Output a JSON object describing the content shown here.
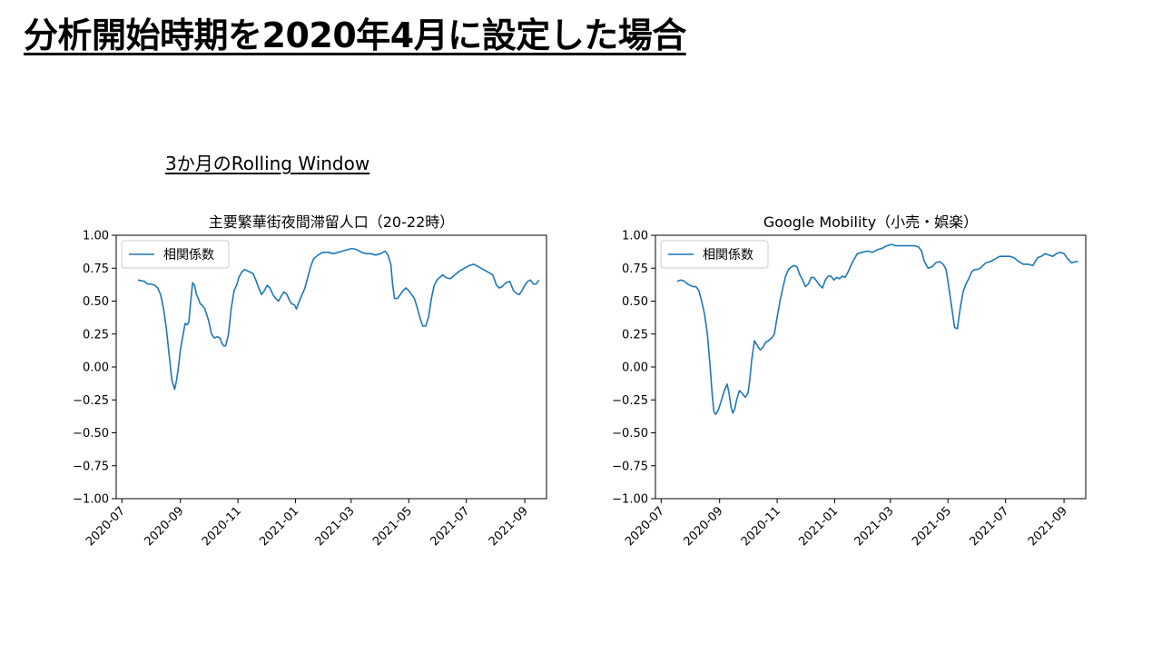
{
  "slide": {
    "title": "分析開始時期を2020年4月に設定した場合",
    "subtitle": "3か月のRolling Window"
  },
  "chart_data": [
    {
      "type": "line",
      "title": "主要繁華街夜間滞留人口（20-22時）",
      "xlabel": "",
      "ylabel": "",
      "ylim": [
        -1.0,
        1.0
      ],
      "yticks": [
        1.0,
        0.75,
        0.5,
        0.25,
        0.0,
        -0.25,
        -0.5,
        -0.75,
        -1.0
      ],
      "ytick_labels": [
        "1.00",
        "0.75",
        "0.50",
        "0.25",
        "0.00",
        "−0.25",
        "−0.50",
        "−0.75",
        "−1.00"
      ],
      "xlim": [
        "2020-06-25",
        "2021-09-24"
      ],
      "xticks": [
        "2020-07-01",
        "2020-09-01",
        "2020-11-01",
        "2021-01-01",
        "2021-03-01",
        "2021-05-01",
        "2021-07-01",
        "2021-09-01"
      ],
      "xtick_labels": [
        "2020-07",
        "2020-09",
        "2020-11",
        "2021-01",
        "2021-03",
        "2021-05",
        "2021-07",
        "2021-09"
      ],
      "legend": {
        "location": "upper left"
      },
      "grid": false,
      "color": "#1f77b4",
      "series": [
        {
          "name": "相関係数",
          "x": [
            "2020-07-18",
            "2020-07-25",
            "2020-07-28",
            "2020-08-01",
            "2020-08-05",
            "2020-08-08",
            "2020-08-11",
            "2020-08-14",
            "2020-08-17",
            "2020-08-20",
            "2020-08-23",
            "2020-08-26",
            "2020-08-28",
            "2020-08-30",
            "2020-09-01",
            "2020-09-04",
            "2020-09-06",
            "2020-09-08",
            "2020-09-10",
            "2020-09-12",
            "2020-09-14",
            "2020-09-16",
            "2020-09-18",
            "2020-09-20",
            "2020-09-22",
            "2020-09-24",
            "2020-09-27",
            "2020-10-01",
            "2020-10-04",
            "2020-10-07",
            "2020-10-10",
            "2020-10-13",
            "2020-10-15",
            "2020-10-17",
            "2020-10-19",
            "2020-10-22",
            "2020-10-25",
            "2020-10-28",
            "2020-10-31",
            "2020-11-02",
            "2020-11-05",
            "2020-11-08",
            "2020-11-11",
            "2020-11-14",
            "2020-11-17",
            "2020-11-20",
            "2020-11-23",
            "2020-11-26",
            "2020-11-29",
            "2020-12-02",
            "2020-12-05",
            "2020-12-08",
            "2020-12-11",
            "2020-12-14",
            "2020-12-17",
            "2020-12-20",
            "2020-12-23",
            "2020-12-26",
            "2020-12-28",
            "2020-12-31",
            "2021-01-02",
            "2021-01-05",
            "2021-01-08",
            "2021-01-11",
            "2021-01-14",
            "2021-01-17",
            "2021-01-20",
            "2021-01-25",
            "2021-01-30",
            "2021-02-05",
            "2021-02-10",
            "2021-02-15",
            "2021-02-20",
            "2021-02-25",
            "2021-03-02",
            "2021-03-07",
            "2021-03-12",
            "2021-03-17",
            "2021-03-22",
            "2021-03-27",
            "2021-04-01",
            "2021-04-06",
            "2021-04-09",
            "2021-04-12",
            "2021-04-14",
            "2021-04-16",
            "2021-04-19",
            "2021-04-22",
            "2021-04-25",
            "2021-04-28",
            "2021-05-01",
            "2021-05-04",
            "2021-05-07",
            "2021-05-10",
            "2021-05-13",
            "2021-05-16",
            "2021-05-19",
            "2021-05-22",
            "2021-05-25",
            "2021-05-28",
            "2021-05-31",
            "2021-06-03",
            "2021-06-06",
            "2021-06-09",
            "2021-06-14",
            "2021-06-19",
            "2021-06-24",
            "2021-06-29",
            "2021-07-04",
            "2021-07-09",
            "2021-07-14",
            "2021-07-19",
            "2021-07-24",
            "2021-07-29",
            "2021-08-02",
            "2021-08-05",
            "2021-08-08",
            "2021-08-12",
            "2021-08-16",
            "2021-08-20",
            "2021-08-23",
            "2021-08-26",
            "2021-08-29",
            "2021-09-01",
            "2021-09-04",
            "2021-09-07",
            "2021-09-10",
            "2021-09-13",
            "2021-09-16"
          ],
          "y": [
            0.66,
            0.65,
            0.63,
            0.63,
            0.62,
            0.6,
            0.55,
            0.45,
            0.3,
            0.1,
            -0.1,
            -0.17,
            -0.1,
            0.0,
            0.13,
            0.25,
            0.33,
            0.32,
            0.34,
            0.5,
            0.64,
            0.62,
            0.55,
            0.52,
            0.48,
            0.47,
            0.44,
            0.35,
            0.25,
            0.22,
            0.23,
            0.22,
            0.18,
            0.16,
            0.16,
            0.25,
            0.45,
            0.58,
            0.63,
            0.68,
            0.72,
            0.74,
            0.73,
            0.72,
            0.71,
            0.66,
            0.6,
            0.55,
            0.58,
            0.62,
            0.6,
            0.55,
            0.52,
            0.5,
            0.54,
            0.57,
            0.55,
            0.5,
            0.48,
            0.47,
            0.44,
            0.5,
            0.55,
            0.6,
            0.68,
            0.76,
            0.82,
            0.85,
            0.87,
            0.87,
            0.86,
            0.87,
            0.88,
            0.89,
            0.9,
            0.89,
            0.87,
            0.86,
            0.86,
            0.85,
            0.86,
            0.88,
            0.85,
            0.78,
            0.62,
            0.52,
            0.52,
            0.55,
            0.58,
            0.6,
            0.58,
            0.55,
            0.52,
            0.45,
            0.37,
            0.31,
            0.31,
            0.38,
            0.52,
            0.62,
            0.66,
            0.68,
            0.7,
            0.68,
            0.67,
            0.7,
            0.73,
            0.75,
            0.77,
            0.78,
            0.76,
            0.74,
            0.72,
            0.7,
            0.62,
            0.6,
            0.61,
            0.64,
            0.65,
            0.58,
            0.56,
            0.55,
            0.58,
            0.62,
            0.65,
            0.66,
            0.63,
            0.63,
            0.66
          ]
        }
      ]
    },
    {
      "type": "line",
      "title": "Google Mobility（小売・娯楽）",
      "xlabel": "",
      "ylabel": "",
      "ylim": [
        -1.0,
        1.0
      ],
      "yticks": [
        1.0,
        0.75,
        0.5,
        0.25,
        0.0,
        -0.25,
        -0.5,
        -0.75,
        -1.0
      ],
      "ytick_labels": [
        "1.00",
        "0.75",
        "0.50",
        "0.25",
        "0.00",
        "−0.25",
        "−0.50",
        "−0.75",
        "−1.00"
      ],
      "xlim": [
        "2020-06-25",
        "2021-09-24"
      ],
      "xticks": [
        "2020-07-01",
        "2020-09-01",
        "2020-11-01",
        "2021-01-01",
        "2021-03-01",
        "2021-05-01",
        "2021-07-01",
        "2021-09-01"
      ],
      "xtick_labels": [
        "2020-07",
        "2020-09",
        "2020-11",
        "2021-01",
        "2021-03",
        "2021-05",
        "2021-07",
        "2021-09"
      ],
      "legend": {
        "location": "upper left"
      },
      "grid": false,
      "color": "#1f77b4",
      "series": [
        {
          "name": "相関係数",
          "x": [
            "2020-07-18",
            "2020-07-22",
            "2020-07-26",
            "2020-07-29",
            "2020-08-01",
            "2020-08-04",
            "2020-08-07",
            "2020-08-10",
            "2020-08-13",
            "2020-08-16",
            "2020-08-19",
            "2020-08-22",
            "2020-08-24",
            "2020-08-26",
            "2020-08-28",
            "2020-08-31",
            "2020-09-03",
            "2020-09-06",
            "2020-09-09",
            "2020-09-11",
            "2020-09-13",
            "2020-09-15",
            "2020-09-17",
            "2020-09-19",
            "2020-09-22",
            "2020-09-25",
            "2020-09-28",
            "2020-10-01",
            "2020-10-03",
            "2020-10-05",
            "2020-10-08",
            "2020-10-11",
            "2020-10-14",
            "2020-10-17",
            "2020-10-20",
            "2020-10-23",
            "2020-10-26",
            "2020-10-29",
            "2020-11-01",
            "2020-11-04",
            "2020-11-07",
            "2020-11-10",
            "2020-11-13",
            "2020-11-16",
            "2020-11-19",
            "2020-11-22",
            "2020-11-25",
            "2020-11-28",
            "2020-12-01",
            "2020-12-04",
            "2020-12-07",
            "2020-12-10",
            "2020-12-13",
            "2020-12-16",
            "2020-12-19",
            "2020-12-22",
            "2020-12-25",
            "2020-12-28",
            "2020-12-31",
            "2021-01-03",
            "2021-01-06",
            "2021-01-09",
            "2021-01-12",
            "2021-01-15",
            "2021-01-20",
            "2021-01-25",
            "2021-01-30",
            "2021-02-05",
            "2021-02-10",
            "2021-02-15",
            "2021-02-20",
            "2021-02-25",
            "2021-03-02",
            "2021-03-07",
            "2021-03-12",
            "2021-03-17",
            "2021-03-22",
            "2021-03-27",
            "2021-03-31",
            "2021-04-03",
            "2021-04-06",
            "2021-04-10",
            "2021-04-14",
            "2021-04-18",
            "2021-04-22",
            "2021-04-26",
            "2021-04-29",
            "2021-05-02",
            "2021-05-05",
            "2021-05-08",
            "2021-05-11",
            "2021-05-14",
            "2021-05-17",
            "2021-05-20",
            "2021-05-23",
            "2021-05-26",
            "2021-05-29",
            "2021-06-01",
            "2021-06-04",
            "2021-06-07",
            "2021-06-10",
            "2021-06-15",
            "2021-06-20",
            "2021-06-25",
            "2021-06-30",
            "2021-07-05",
            "2021-07-10",
            "2021-07-15",
            "2021-07-20",
            "2021-07-25",
            "2021-07-30",
            "2021-08-04",
            "2021-08-08",
            "2021-08-12",
            "2021-08-16",
            "2021-08-20",
            "2021-08-24",
            "2021-08-28",
            "2021-09-01",
            "2021-09-05",
            "2021-09-09",
            "2021-09-13",
            "2021-09-16"
          ],
          "y": [
            0.65,
            0.66,
            0.65,
            0.63,
            0.62,
            0.61,
            0.61,
            0.58,
            0.5,
            0.4,
            0.25,
            0.0,
            -0.2,
            -0.34,
            -0.36,
            -0.32,
            -0.25,
            -0.18,
            -0.13,
            -0.2,
            -0.3,
            -0.35,
            -0.32,
            -0.25,
            -0.18,
            -0.2,
            -0.23,
            -0.2,
            -0.1,
            0.05,
            0.2,
            0.16,
            0.13,
            0.15,
            0.19,
            0.2,
            0.22,
            0.25,
            0.38,
            0.5,
            0.6,
            0.69,
            0.74,
            0.76,
            0.77,
            0.76,
            0.7,
            0.66,
            0.61,
            0.63,
            0.68,
            0.68,
            0.65,
            0.62,
            0.6,
            0.66,
            0.69,
            0.69,
            0.66,
            0.68,
            0.67,
            0.69,
            0.68,
            0.72,
            0.8,
            0.86,
            0.87,
            0.88,
            0.87,
            0.89,
            0.9,
            0.92,
            0.93,
            0.92,
            0.92,
            0.92,
            0.92,
            0.92,
            0.91,
            0.88,
            0.8,
            0.75,
            0.76,
            0.79,
            0.8,
            0.78,
            0.74,
            0.6,
            0.45,
            0.3,
            0.29,
            0.45,
            0.57,
            0.63,
            0.67,
            0.72,
            0.74,
            0.74,
            0.75,
            0.77,
            0.79,
            0.8,
            0.82,
            0.84,
            0.84,
            0.84,
            0.83,
            0.8,
            0.78,
            0.78,
            0.77,
            0.83,
            0.84,
            0.86,
            0.85,
            0.84,
            0.86,
            0.87,
            0.86,
            0.82,
            0.79,
            0.8,
            0.8
          ]
        }
      ]
    }
  ]
}
